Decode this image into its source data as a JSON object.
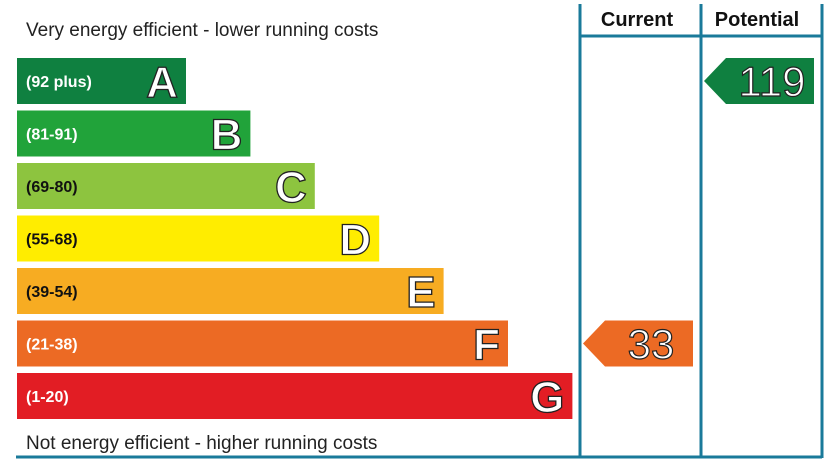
{
  "chart_data": {
    "type": "bar",
    "top_text": "Very energy efficient - lower running costs",
    "bottom_text": "Not energy efficient - higher running costs",
    "columns": {
      "current": "Current",
      "potential": "Potential"
    },
    "bands": [
      {
        "letter": "A",
        "range": "(92 plus)",
        "color": "#0f8040"
      },
      {
        "letter": "B",
        "range": "(81-91)",
        "color": "#21a33a"
      },
      {
        "letter": "C",
        "range": "(69-80)",
        "color": "#8dc43f"
      },
      {
        "letter": "D",
        "range": "(55-68)",
        "color": "#ffed00"
      },
      {
        "letter": "E",
        "range": "(39-54)",
        "color": "#f7ac22"
      },
      {
        "letter": "F",
        "range": "(21-38)",
        "color": "#ec6a24"
      },
      {
        "letter": "G",
        "range": "(1-20)",
        "color": "#e21d24"
      }
    ],
    "current": {
      "value": 33,
      "label": "33",
      "band": "F",
      "color": "#ec6a24"
    },
    "potential": {
      "value": 119,
      "label": "119",
      "band": "A",
      "color": "#0f8040"
    },
    "frame_color": "#1a7a9a"
  }
}
